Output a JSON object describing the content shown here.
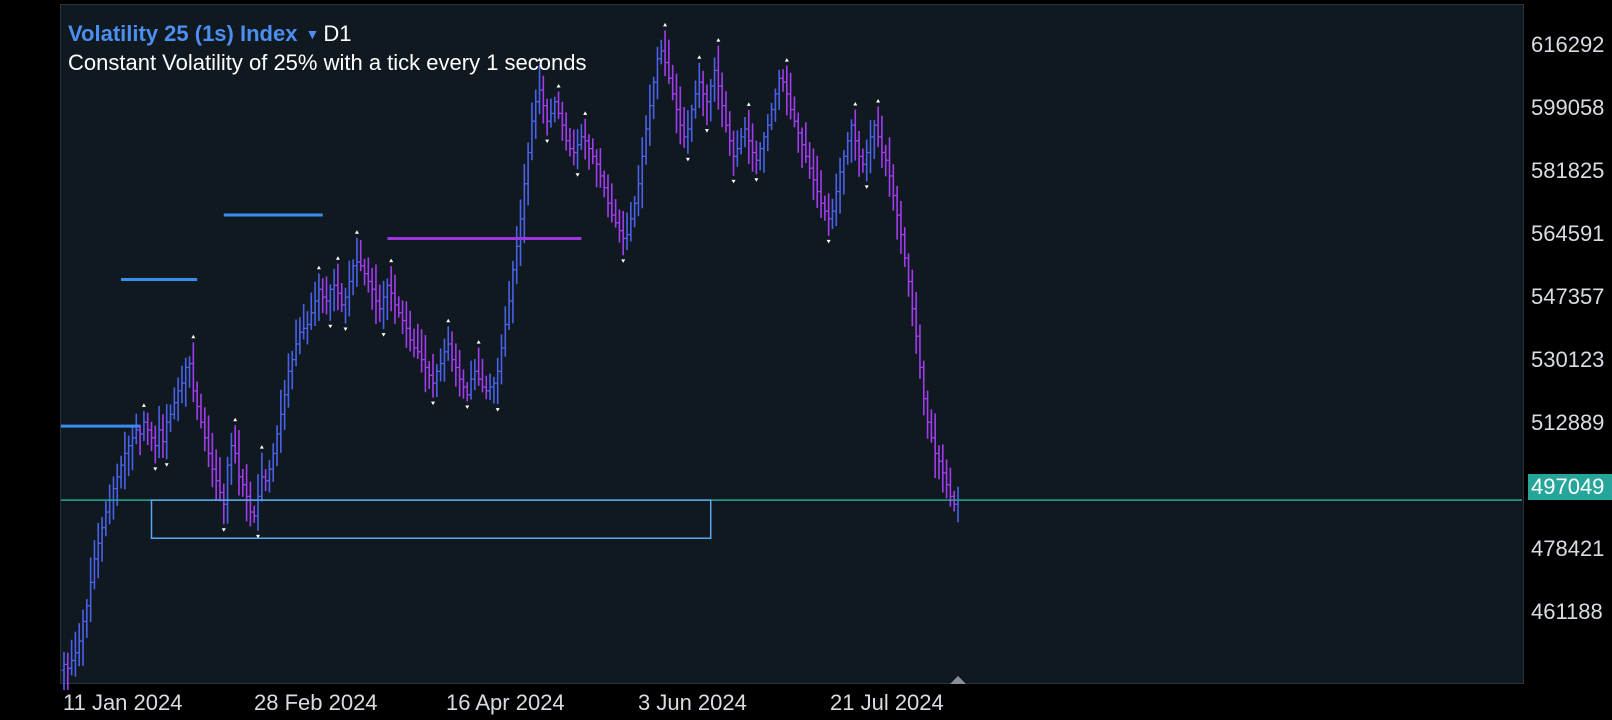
{
  "symbol": {
    "name": "Volatility 25 (1s) Index",
    "timeframe": "D1",
    "description": "Constant Volatility of 25% with a tick every 1 seconds"
  },
  "price_axis": {
    "labels": [
      "616292",
      "599058",
      "581825",
      "564591",
      "547357",
      "530123",
      "512889",
      "478421",
      "461188"
    ],
    "current_price": "497049"
  },
  "time_axis": {
    "labels": [
      "11 Jan 2024",
      "28 Feb 2024",
      "16 Apr 2024",
      "3 Jun 2024",
      "21 Jul 2024"
    ]
  },
  "colors": {
    "background": "#101820",
    "bull_bar": "#4a62ea",
    "bear_bar": "#a23cf0",
    "resistance_line": "#3b8cf0",
    "support_line": "#9b35e0",
    "current_price_line": "#26a69a",
    "zone_box": "#5aa8f0"
  },
  "chart_data": {
    "type": "ohlc",
    "x_range": [
      "2024-01-01",
      "2024-09-08"
    ],
    "y_range": [
      450000,
      624000
    ],
    "series": [
      {
        "values": [
          455000,
          454000,
          456000,
          458000,
          461000,
          466000,
          470000,
          476000,
          482000,
          486000,
          490000,
          494000,
          497000,
          500000,
          503000,
          506000,
          509000,
          511000,
          513000,
          515000,
          514000,
          517000,
          515000,
          513000,
          511000,
          515000,
          512000,
          517000,
          519000,
          522000,
          525000,
          527000,
          531000,
          532000,
          525000,
          521000,
          517000,
          513000,
          509000,
          505000,
          502000,
          499000,
          496000,
          506000,
          511000,
          509000,
          503000,
          501000,
          498000,
          494000,
          493000,
          498000,
          503000,
          502000,
          505000,
          509000,
          514000,
          519000,
          524000,
          530000,
          533000,
          537000,
          540000,
          541000,
          542000,
          545000,
          548000,
          551000,
          549000,
          548000,
          551000,
          552000,
          550000,
          547000,
          549000,
          553000,
          557000,
          558000,
          557000,
          555000,
          553000,
          551000,
          548000,
          546000,
          549000,
          552000,
          550000,
          547000,
          545000,
          543000,
          541000,
          538000,
          536000,
          535000,
          533000,
          531000,
          529000,
          527000,
          530000,
          532000,
          535000,
          537000,
          533000,
          531000,
          528000,
          526000,
          524000,
          528000,
          530000,
          528000,
          526000,
          525000,
          526000,
          527000,
          530000,
          536000,
          542000,
          548000,
          556000,
          562000,
          569000,
          578000,
          586000,
          594000,
          599000,
          602000,
          598000,
          594000,
          596000,
          599000,
          596000,
          593000,
          589000,
          587000,
          586000,
          588000,
          590000,
          589000,
          587000,
          585000,
          583000,
          580000,
          577000,
          573000,
          570000,
          568000,
          566000,
          564000,
          565000,
          569000,
          573000,
          578000,
          585000,
          592000,
          598000,
          604000,
          610000,
          612000,
          609000,
          605000,
          601000,
          597000,
          593000,
          590000,
          592000,
          597000,
          601000,
          604000,
          601000,
          599000,
          603000,
          607000,
          603000,
          598000,
          593000,
          589000,
          585000,
          587000,
          590000,
          592000,
          589000,
          586000,
          584000,
          587000,
          590000,
          593000,
          597000,
          601000,
          605000,
          604000,
          601000,
          597000,
          594000,
          591000,
          588000,
          585000,
          582000,
          579000,
          576000,
          573000,
          571000,
          569000,
          571000,
          576000,
          581000,
          585000,
          589000,
          593000,
          589000,
          585000,
          583000,
          586000,
          590000,
          593000,
          590000,
          586000,
          584000,
          580000,
          575000,
          570000,
          565000,
          559000,
          553000,
          546000,
          539000,
          531000,
          523000,
          517000,
          513000,
          509000,
          507000,
          504000,
          501000,
          498000,
          496000,
          497049
        ]
      }
    ],
    "levels": [
      {
        "kind": "resistance",
        "value": 516000
      },
      {
        "kind": "resistance",
        "value": 553500
      },
      {
        "kind": "resistance",
        "value": 570000
      },
      {
        "kind": "support",
        "value": 564000
      },
      {
        "kind": "current",
        "value": 497049
      }
    ],
    "zone": {
      "top": 497049,
      "bottom": 487300
    }
  }
}
